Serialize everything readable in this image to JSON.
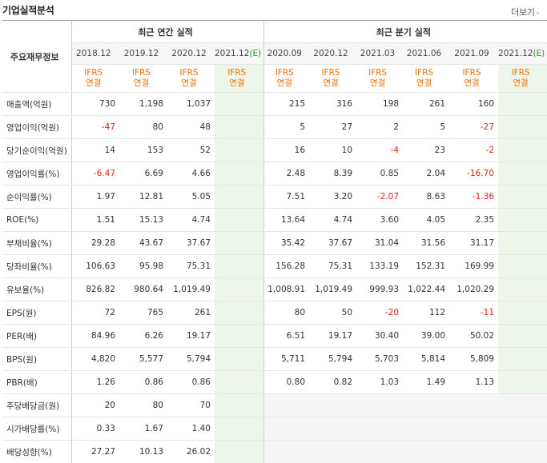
{
  "header": {
    "title": "기업실적분석",
    "more_label": "더보기"
  },
  "table": {
    "row_header_label": "주요재무정보",
    "annual_group_label": "최근 연간 실적",
    "quarter_group_label": "최근 분기 실적",
    "annual_periods": [
      "2018.12",
      "2019.12",
      "2020.12",
      "2021.12"
    ],
    "quarter_periods": [
      "2020.09",
      "2020.12",
      "2021.03",
      "2021.06",
      "2021.09",
      "2021.12"
    ],
    "estimate_suffix": "(E)",
    "basis_line1": "IFRS",
    "basis_line2": "연결",
    "rows": [
      {
        "label": "매출액(억원)",
        "annual": [
          "730",
          "1,198",
          "1,037",
          ""
        ],
        "quarter": [
          "215",
          "316",
          "198",
          "261",
          "160",
          ""
        ]
      },
      {
        "label": "영업이익(억원)",
        "annual": [
          "-47",
          "80",
          "48",
          ""
        ],
        "quarter": [
          "5",
          "27",
          "2",
          "5",
          "-27",
          ""
        ]
      },
      {
        "label": "당기순이익(억원)",
        "annual": [
          "14",
          "153",
          "52",
          ""
        ],
        "quarter": [
          "16",
          "10",
          "-4",
          "23",
          "-2",
          ""
        ]
      },
      {
        "label": "영업이익률(%)",
        "annual": [
          "-6.47",
          "6.69",
          "4.66",
          ""
        ],
        "quarter": [
          "2.48",
          "8.39",
          "0.85",
          "2.04",
          "-16.70",
          ""
        ]
      },
      {
        "label": "순이익률(%)",
        "annual": [
          "1.97",
          "12.81",
          "5.05",
          ""
        ],
        "quarter": [
          "7.51",
          "3.20",
          "-2.07",
          "8.63",
          "-1.36",
          ""
        ]
      },
      {
        "label": "ROE(%)",
        "annual": [
          "1.51",
          "15.13",
          "4.74",
          ""
        ],
        "quarter": [
          "13.64",
          "4.74",
          "3.60",
          "4.05",
          "2.35",
          ""
        ]
      },
      {
        "label": "부채비율(%)",
        "annual": [
          "29.28",
          "43.67",
          "37.67",
          ""
        ],
        "quarter": [
          "35.42",
          "37.67",
          "31.04",
          "31.56",
          "31.17",
          ""
        ]
      },
      {
        "label": "당좌비율(%)",
        "annual": [
          "106.63",
          "95.98",
          "75.31",
          ""
        ],
        "quarter": [
          "156.28",
          "75.31",
          "133.19",
          "152.31",
          "169.99",
          ""
        ]
      },
      {
        "label": "유보율(%)",
        "annual": [
          "826.82",
          "980.64",
          "1,019.49",
          ""
        ],
        "quarter": [
          "1,008.91",
          "1,019.49",
          "999.93",
          "1,022.44",
          "1,020.29",
          ""
        ]
      },
      {
        "label": "EPS(원)",
        "annual": [
          "72",
          "765",
          "261",
          ""
        ],
        "quarter": [
          "80",
          "50",
          "-20",
          "112",
          "-11",
          ""
        ]
      },
      {
        "label": "PER(배)",
        "annual": [
          "84.96",
          "6.26",
          "19.17",
          ""
        ],
        "quarter": [
          "6.51",
          "19.17",
          "30.40",
          "39.00",
          "50.02",
          ""
        ]
      },
      {
        "label": "BPS(원)",
        "annual": [
          "4,820",
          "5,577",
          "5,794",
          ""
        ],
        "quarter": [
          "5,711",
          "5,794",
          "5,703",
          "5,814",
          "5,809",
          ""
        ]
      },
      {
        "label": "PBR(배)",
        "annual": [
          "1.26",
          "0.86",
          "0.86",
          ""
        ],
        "quarter": [
          "0.80",
          "0.82",
          "1.03",
          "1.49",
          "1.13",
          ""
        ]
      },
      {
        "label": "주당배당금(원)",
        "annual": [
          "20",
          "80",
          "70",
          ""
        ],
        "quarter": null
      },
      {
        "label": "시가배당률(%)",
        "annual": [
          "0.33",
          "1.67",
          "1.40",
          ""
        ],
        "quarter": null
      },
      {
        "label": "배당성향(%)",
        "annual": [
          "27.27",
          "10.13",
          "26.02",
          ""
        ],
        "quarter": null
      }
    ],
    "group_start_rows": [
      3,
      6,
      9,
      13
    ]
  },
  "colors": {
    "negative": "#e2231a",
    "ifrs": "#f07000",
    "estimate_bg": "#eef6ec",
    "estimate_text": "#2a9d2a"
  }
}
